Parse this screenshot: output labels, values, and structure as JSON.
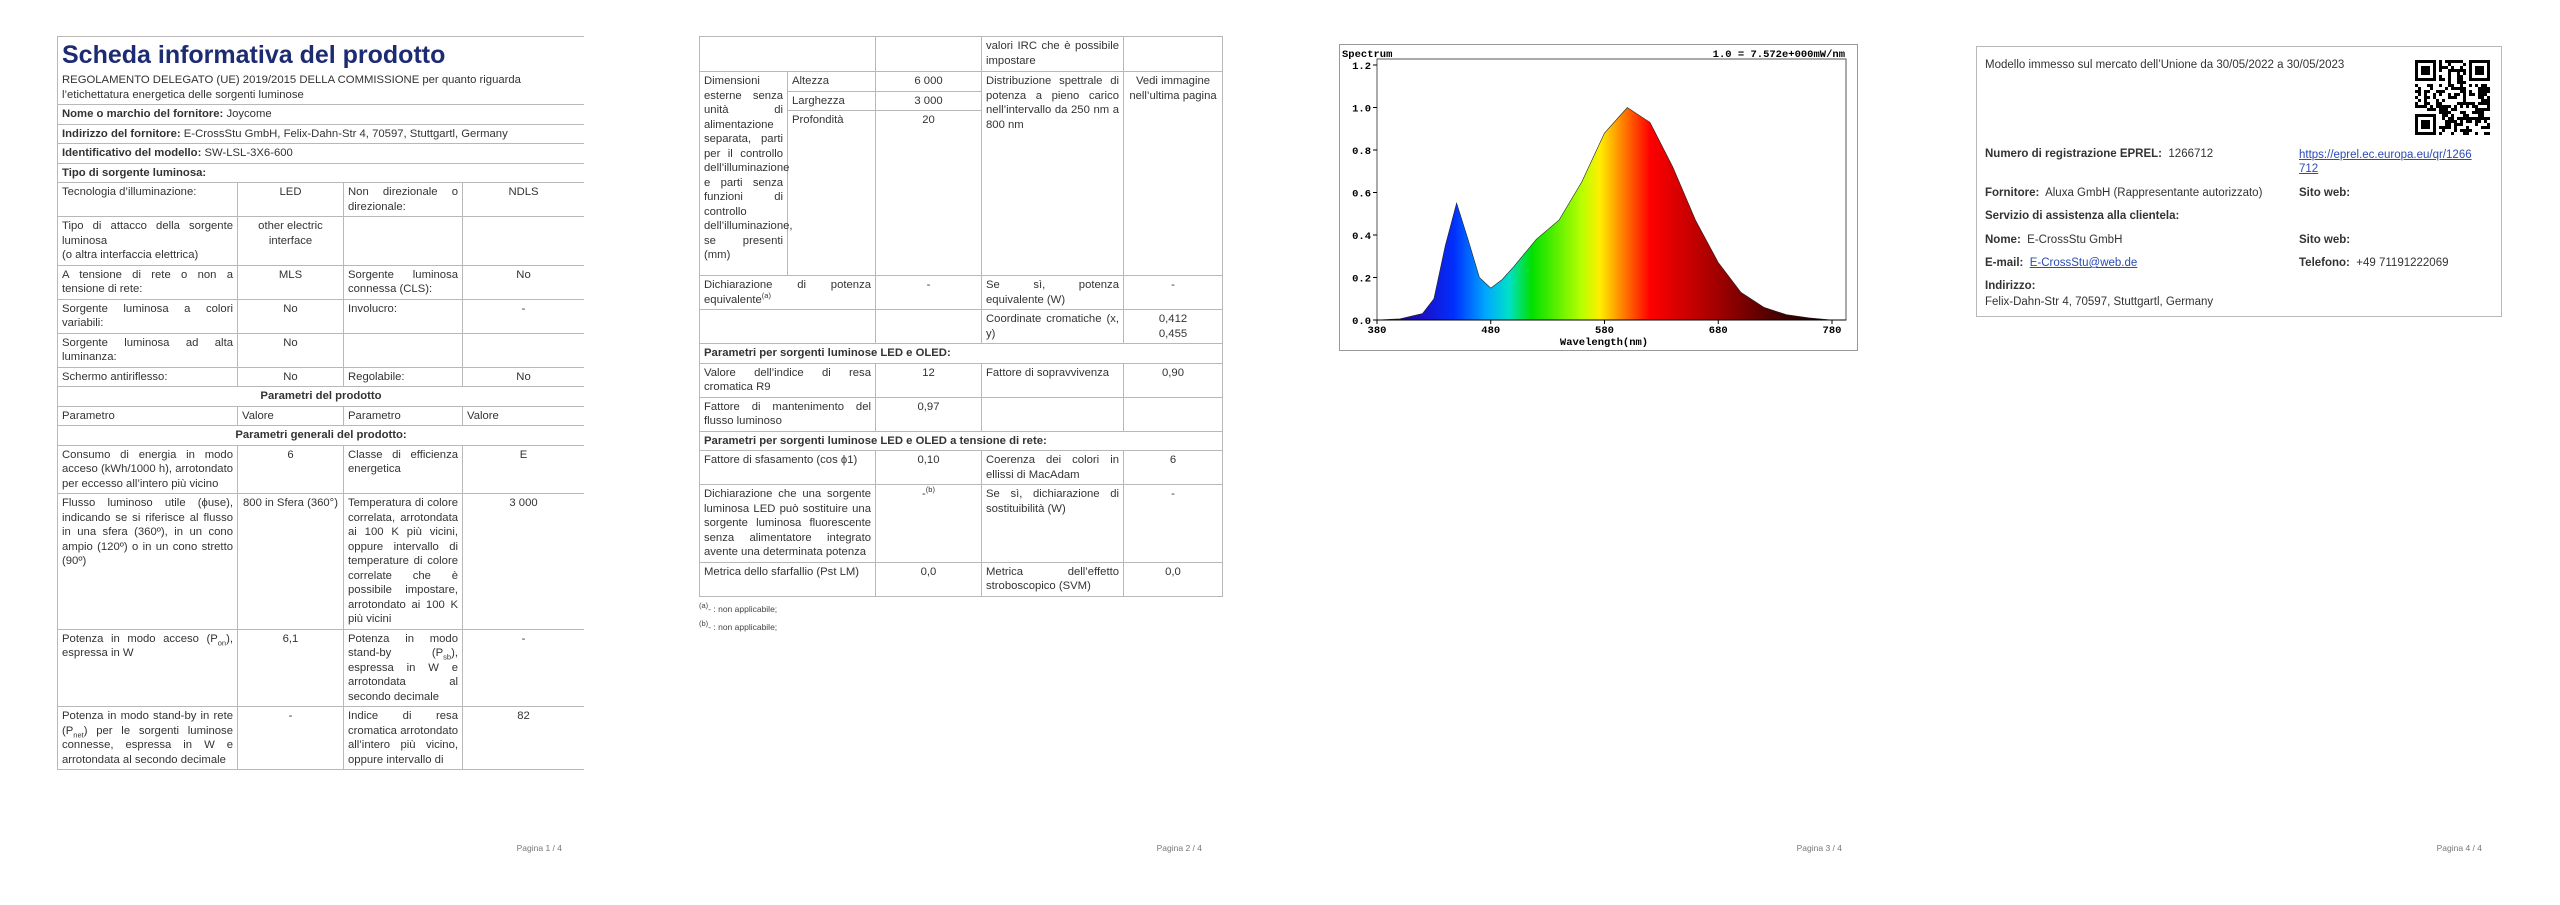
{
  "page1": {
    "title": "Scheda informativa del prodotto",
    "regulation": "REGOLAMENTO DELEGATO (UE) 2019/2015 DELLA COMMISSIONE per quanto riguarda l’etichettatura energetica delle sorgenti luminose",
    "supplier_name": {
      "label": "Nome o marchio del fornitore:",
      "value": "Joycome"
    },
    "supplier_address": {
      "label": "Indirizzo del fornitore:",
      "value": "E-CrossStu GmbH, Felix-Dahn-Str 4, 70597, Stuttgartl, Germany"
    },
    "model": {
      "label": "Identificativo del modello:",
      "value": "SW-LSL-3X6-600"
    },
    "source_type_heading": "Tipo di sorgente luminosa:",
    "source_type_rows": [
      [
        "Tecnologia d’illuminazione:",
        "LED",
        "Non direzionale o direzionale:",
        "NDLS"
      ],
      [
        [
          "Tipo di attacco della sorgente luminosa",
          "(o altra interfaccia elettrica)"
        ],
        "other electric interface"
      ],
      [
        "A tensione di rete o non a tensione di rete:",
        "MLS",
        "Sorgente luminosa connessa (CLS):",
        "No"
      ],
      [
        "Sorgente luminosa a colori variabili:",
        "No",
        "Involucro:",
        "-"
      ],
      [
        "Sorgente luminosa ad alta luminanza:",
        "No"
      ],
      [
        "Schermo antiriflesso:",
        "No",
        "Regolabile:",
        "No"
      ]
    ],
    "parameters_heading": "Parametri del prodotto",
    "columns": [
      "Parametro",
      "Valore",
      "Parametro",
      "Valore"
    ],
    "general_heading": "Parametri generali del prodotto:",
    "general_rows": [
      [
        "Consumo di energia in modo acceso (kWh/1000 h), arrotondato per eccesso all’intero più vicino",
        "6",
        "Classe di efficienza energetica",
        "E"
      ],
      [
        "Flusso luminoso utile (ϕuse), indicando se si riferisce al flusso in una sfera (360º), in un cono ampio (120º) o in un cono stretto (90º)",
        "800 in Sfera (360°)",
        "Temperatura di colore correlata, arrotondata ai 100 K più vicini, oppure intervallo di temperature di colore correlate che è possibile impostare, arrotondato ai 100 K più vicini",
        "3 000"
      ],
      [
        [
          "Potenza in modo acceso (P",
          "on",
          "), espressa in W"
        ],
        "6,1",
        [
          "Potenza in modo stand-by (P",
          "sb",
          "), espressa in W e arrotondata al secondo decimale"
        ],
        "-"
      ],
      [
        [
          "Potenza in modo stand-by in rete (P",
          "net",
          ") per le sorgenti luminose connesse, espressa in W e arrotondata al secondo decimale"
        ],
        "-",
        "Indice di resa cromatica arrotondato all’intero più vicino, oppure intervallo di",
        "82"
      ]
    ]
  },
  "page2": {
    "continued": "valori IRC che è possibile impostare",
    "dimensions": {
      "label": "Dimensioni esterne senza unità di alimentazione separata, parti per il controllo dell’illuminazione e parti senza funzioni di controllo dell’illuminazione, se presenti (mm)",
      "height": [
        "Altezza",
        "6 000"
      ],
      "width": [
        "Larghezza",
        "3 000"
      ],
      "depth": [
        "Profondità",
        "20"
      ],
      "spectrum_label": "Distribuzione spettrale di potenza a pieno carico nell’intervallo da 250 nm a 800 nm",
      "spectrum_value": "Vedi immagine nell’ultima pagina"
    },
    "equivalent_power": {
      "label": [
        "Dichiarazione di potenza equivalente",
        "(a)"
      ],
      "value": "-",
      "if_yes_label": "Se sì, potenza equivalente (W)",
      "if_yes_value": "-"
    },
    "chromaticity": {
      "label": "Coordinate cromatiche (x, y)",
      "x": "0,412",
      "y": "0,455"
    },
    "led_heading": "Parametri per sorgenti luminose LED e OLED:",
    "led_rows": [
      [
        "Valore dell’indice di resa cromatica R9",
        "12",
        "Fattore di sopravvivenza",
        "0,90"
      ],
      [
        "Fattore di mantenimento del flusso luminoso",
        "0,97"
      ]
    ],
    "mains_heading": "Parametri per sorgenti luminose LED e OLED a tensione di rete:",
    "mains_rows": [
      [
        "Fattore di sfasamento (cos ϕ1)",
        "0,10",
        "Coerenza dei colori in ellissi di MacAdam",
        "6"
      ],
      [
        "Dichiarazione che una sorgente luminosa LED può sostituire una sorgente luminosa fluorescente senza alimentatore integrato avente una determinata potenza",
        [
          "-",
          "(b)"
        ],
        "Se sì, dichiarazione di sostituibilità (W)",
        "-"
      ],
      [
        "Metrica dello sfarfallio (Pst LM)",
        "0,0",
        "Metrica dell’effetto stroboscopico (SVM)",
        "0,0"
      ]
    ],
    "footnotes": [
      [
        "(a)",
        "- : non applicabile;"
      ],
      [
        "(b)",
        "- : non applicabile;"
      ]
    ]
  },
  "chart_data": {
    "type": "area",
    "title": "Spectrum",
    "annotation": "1.0 = 7.572e+000mW/nm",
    "x_label": "Wavelength(nm)",
    "x": [
      380,
      400,
      420,
      430,
      440,
      450,
      460,
      470,
      480,
      490,
      500,
      520,
      540,
      560,
      580,
      600,
      620,
      640,
      660,
      680,
      700,
      720,
      740,
      760,
      780
    ],
    "values": [
      0,
      0.005,
      0.03,
      0.1,
      0.35,
      0.55,
      0.38,
      0.2,
      0.15,
      0.19,
      0.25,
      0.38,
      0.47,
      0.65,
      0.88,
      1.0,
      0.93,
      0.72,
      0.47,
      0.27,
      0.13,
      0.06,
      0.025,
      0.01,
      0
    ],
    "xlim": [
      380,
      780
    ],
    "xticks": [
      380,
      480,
      580,
      680,
      780
    ],
    "ylim": [
      0,
      1.2
    ],
    "yticks": [
      {
        "value": 0,
        "label": "0.0"
      },
      0.2,
      0.4,
      0.6,
      0.8,
      {
        "value": 1,
        "label": "1.0"
      },
      1.2
    ]
  },
  "page4": {
    "market": "Modello immesso sul mercato dell’Unione da 30/05/2022 a 30/05/2023",
    "eprel": {
      "label": "Numero di registrazione EPREL:",
      "value": "1266712",
      "link": "https://eprel.ec.europa.eu/qr/1266712"
    },
    "supplier": {
      "label": "Fornitore:",
      "value": "Aluxa GmbH (Rappresentante autorizzato)",
      "website_label": "Sito web:"
    },
    "customer_service": "Servizio di assistenza alla clientela:",
    "name": {
      "label": "Nome:",
      "value": "E-CrossStu GmbH",
      "website_label": "Sito web:"
    },
    "email": {
      "label": "E-mail:",
      "value": "E-CrossStu@web.de"
    },
    "phone": {
      "label": "Telefono:",
      "value": "+49 71191222069"
    },
    "address": {
      "label": "Indirizzo:",
      "value": "Felix-Dahn-Str 4, 70597, Stuttgartl, Germany"
    }
  },
  "footers": [
    "Pagina 1 / 4",
    "Pagina 2 / 4",
    "Pagina 3 / 4",
    "Pagina 4 / 4"
  ]
}
